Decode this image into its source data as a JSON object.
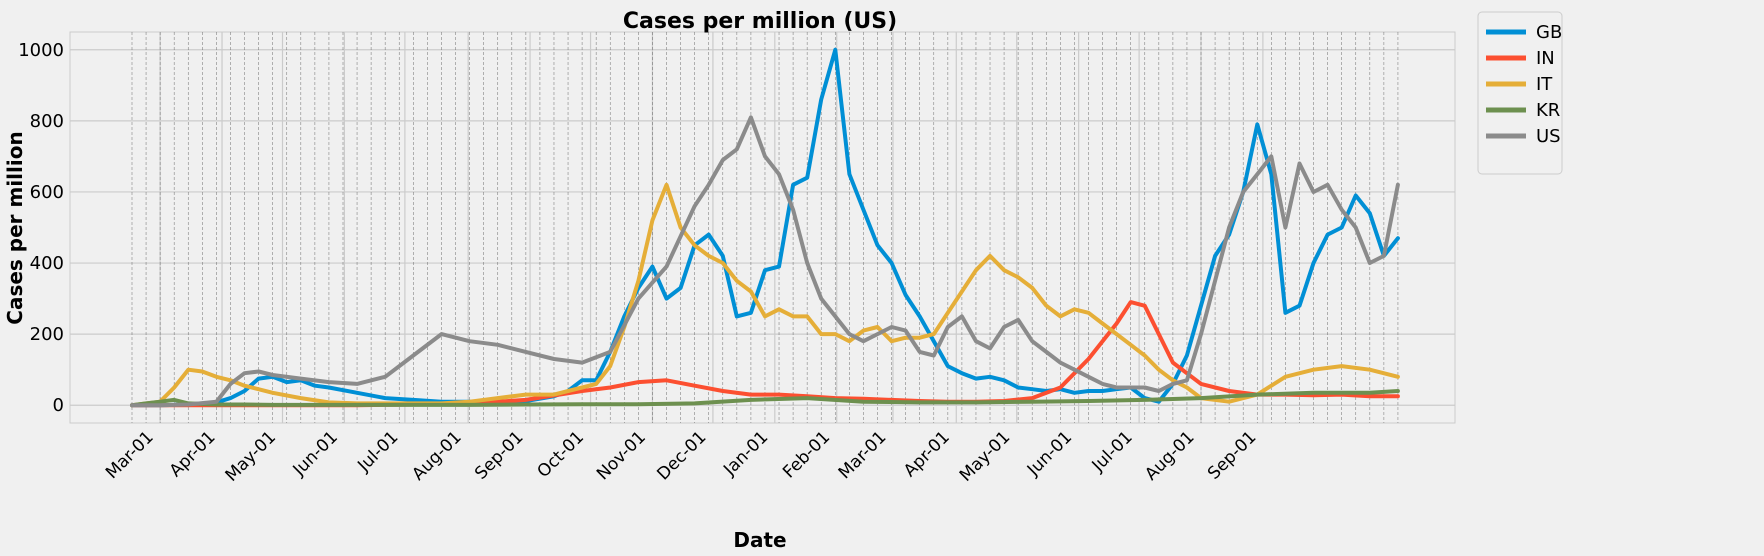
{
  "chart_data": {
    "type": "line",
    "title": "Cases per million (US)",
    "xlabel": "Date",
    "ylabel": "Cases per million",
    "ylim": [
      -50,
      1050
    ],
    "yticks": [
      0,
      200,
      400,
      600,
      800,
      1000
    ],
    "x_tick_labels": [
      "Mar-01",
      "Apr-01",
      "May-01",
      "Jun-01",
      "Jul-01",
      "Aug-01",
      "Sep-01",
      "Oct-01",
      "Nov-01",
      "Dec-01",
      "Jan-01",
      "Feb-01",
      "Mar-01",
      "Apr-01",
      "May-01",
      "Jun-01",
      "Jul-01",
      "Aug-01",
      "Sep-01"
    ],
    "legend_position": "outside-top-right",
    "grid": true,
    "weekly_vertical_lines": true,
    "x_unit": "weeks since Feb-15 (start of data)",
    "series": [
      {
        "name": "GB",
        "color": "#008fd5",
        "x": [
          0,
          2,
          4,
          6,
          7,
          8,
          9,
          10,
          11,
          12,
          13,
          14,
          16,
          18,
          20,
          22,
          24,
          26,
          28,
          30,
          31,
          32,
          33,
          34,
          35,
          36,
          37,
          38,
          39,
          40,
          41,
          42,
          43,
          44,
          45,
          46,
          47,
          48,
          49,
          50,
          51,
          52,
          53,
          54,
          55,
          56,
          57,
          58,
          59,
          60,
          61,
          62,
          63,
          64,
          65,
          66,
          67,
          68,
          69,
          70,
          71,
          72,
          73,
          74,
          75,
          76,
          77,
          78,
          79,
          80,
          81,
          82,
          83,
          84,
          85,
          86,
          87,
          88,
          89,
          90
        ],
        "values": [
          0,
          0,
          2,
          8,
          20,
          40,
          75,
          80,
          65,
          70,
          55,
          50,
          35,
          20,
          15,
          10,
          10,
          8,
          12,
          25,
          40,
          70,
          70,
          150,
          250,
          330,
          390,
          300,
          330,
          450,
          480,
          420,
          250,
          260,
          380,
          390,
          620,
          640,
          860,
          1000,
          650,
          550,
          450,
          400,
          310,
          250,
          180,
          110,
          90,
          75,
          80,
          70,
          50,
          45,
          40,
          45,
          35,
          40,
          40,
          45,
          50,
          20,
          10,
          60,
          140,
          280,
          420,
          480,
          600,
          790,
          650,
          260,
          280,
          400,
          480,
          500,
          590,
          540,
          420,
          470
        ]
      },
      {
        "name": "IN",
        "color": "#fc4f30",
        "x": [
          0,
          4,
          8,
          12,
          16,
          20,
          24,
          28,
          32,
          34,
          36,
          38,
          40,
          42,
          44,
          46,
          48,
          50,
          52,
          54,
          56,
          58,
          60,
          62,
          64,
          66,
          68,
          70,
          71,
          72,
          73,
          74,
          76,
          78,
          80,
          82,
          84,
          86,
          88,
          90
        ],
        "values": [
          0,
          0,
          0,
          0,
          0,
          2,
          5,
          15,
          40,
          50,
          65,
          70,
          55,
          40,
          30,
          30,
          25,
          20,
          18,
          15,
          12,
          10,
          10,
          12,
          20,
          50,
          130,
          230,
          290,
          280,
          200,
          120,
          60,
          40,
          30,
          30,
          28,
          30,
          25,
          25
        ]
      },
      {
        "name": "IT",
        "color": "#e5ae38",
        "x": [
          0,
          2,
          3,
          4,
          5,
          6,
          7,
          8,
          10,
          12,
          14,
          16,
          18,
          20,
          22,
          24,
          26,
          28,
          30,
          32,
          33,
          34,
          35,
          36,
          37,
          38,
          39,
          40,
          41,
          42,
          43,
          44,
          45,
          46,
          47,
          48,
          49,
          50,
          51,
          52,
          53,
          54,
          55,
          56,
          57,
          58,
          59,
          60,
          61,
          62,
          63,
          64,
          65,
          66,
          67,
          68,
          69,
          70,
          71,
          72,
          73,
          74,
          75,
          76,
          78,
          80,
          82,
          84,
          86,
          88,
          90
        ],
        "values": [
          0,
          10,
          50,
          100,
          95,
          80,
          70,
          55,
          35,
          20,
          8,
          5,
          5,
          5,
          5,
          10,
          20,
          30,
          30,
          50,
          60,
          110,
          220,
          350,
          520,
          620,
          500,
          450,
          420,
          400,
          350,
          320,
          250,
          270,
          250,
          250,
          200,
          200,
          180,
          210,
          220,
          180,
          190,
          190,
          200,
          260,
          320,
          380,
          420,
          380,
          360,
          330,
          280,
          250,
          270,
          260,
          230,
          200,
          170,
          140,
          100,
          70,
          50,
          20,
          10,
          30,
          80,
          100,
          110,
          100,
          80
        ]
      },
      {
        "name": "KR",
        "color": "#6d904f",
        "x": [
          0,
          1,
          2,
          3,
          4,
          6,
          8,
          10,
          12,
          16,
          20,
          24,
          28,
          32,
          36,
          40,
          44,
          48,
          52,
          56,
          60,
          64,
          68,
          72,
          76,
          80,
          84,
          88,
          90
        ],
        "values": [
          0,
          5,
          10,
          15,
          5,
          2,
          2,
          1,
          1,
          1,
          1,
          1,
          2,
          3,
          3,
          5,
          15,
          20,
          10,
          8,
          8,
          10,
          12,
          15,
          20,
          30,
          35,
          35,
          40
        ]
      },
      {
        "name": "US",
        "color": "#8b8b8b",
        "x": [
          0,
          2,
          4,
          6,
          7,
          8,
          9,
          10,
          12,
          14,
          16,
          18,
          20,
          22,
          24,
          26,
          28,
          30,
          32,
          34,
          36,
          38,
          40,
          41,
          42,
          43,
          44,
          45,
          46,
          47,
          48,
          49,
          50,
          51,
          52,
          53,
          54,
          55,
          56,
          57,
          58,
          59,
          60,
          61,
          62,
          63,
          64,
          65,
          66,
          67,
          68,
          69,
          70,
          71,
          72,
          73,
          74,
          75,
          76,
          77,
          78,
          79,
          80,
          81,
          82,
          83,
          84,
          85,
          86,
          87,
          88,
          89,
          90
        ],
        "values": [
          0,
          0,
          2,
          10,
          60,
          90,
          95,
          85,
          75,
          65,
          60,
          80,
          140,
          200,
          180,
          170,
          150,
          130,
          120,
          150,
          300,
          390,
          560,
          620,
          690,
          720,
          810,
          700,
          650,
          550,
          400,
          300,
          250,
          200,
          180,
          200,
          220,
          210,
          150,
          140,
          220,
          250,
          180,
          160,
          220,
          240,
          180,
          150,
          120,
          100,
          80,
          60,
          50,
          50,
          50,
          40,
          60,
          70,
          200,
          350,
          500,
          600,
          650,
          700,
          500,
          680,
          600,
          620,
          550,
          500,
          400,
          420,
          620
        ]
      }
    ]
  }
}
